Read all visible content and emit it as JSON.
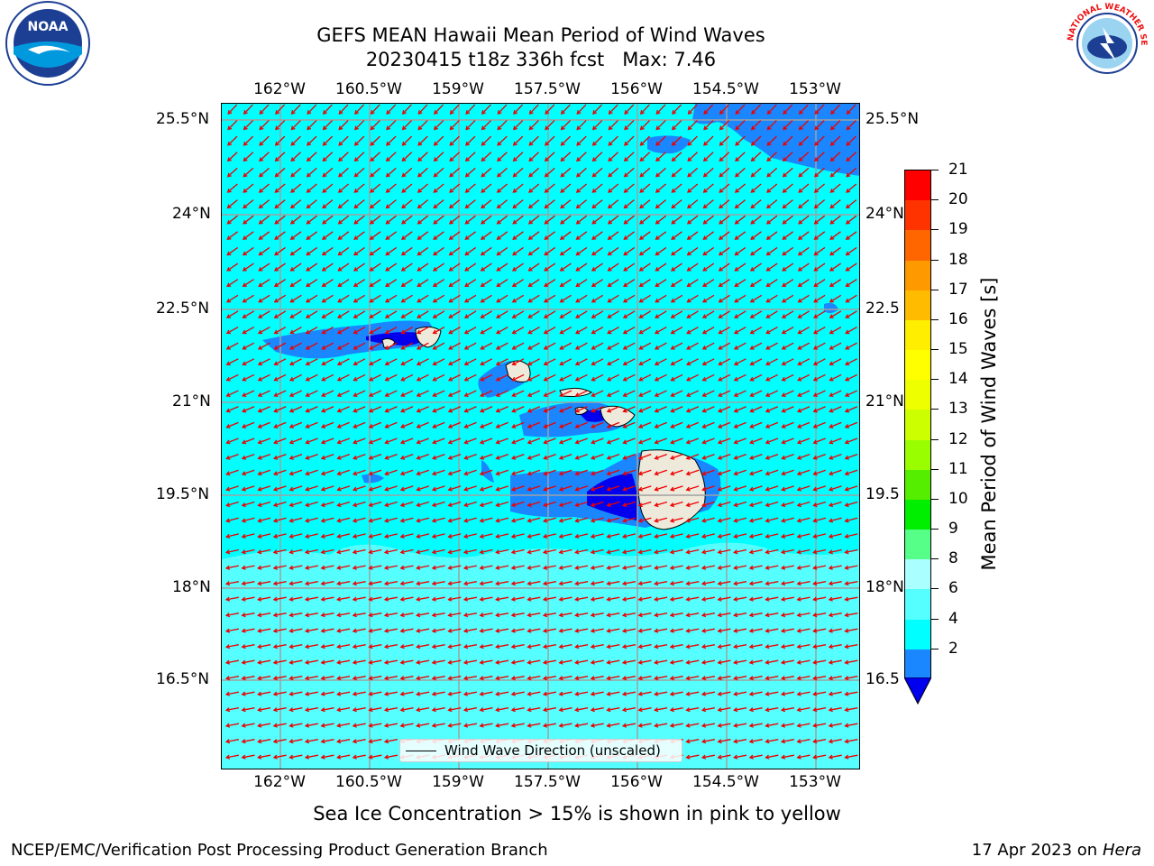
{
  "title": {
    "line1": "GEFS MEAN Hawaii Mean Period of Wind Waves",
    "line2": "20230415 t18z 336h fcst   Max: 7.46"
  },
  "map": {
    "lon_labels": [
      "162°W",
      "160.5°W",
      "159°W",
      "157.5°W",
      "156°W",
      "154.5°W",
      "153°W"
    ],
    "lat_labels_left": [
      "25.5°N",
      "24°N",
      "22.5°N",
      "21°N",
      "19.5°N",
      "18°N",
      "16.5°N"
    ],
    "lat_labels_right": [
      "25.5°N",
      "24°N",
      "22.5",
      "21°N",
      "19.5",
      "18°N",
      "16.5"
    ],
    "legend_label": "Wind Wave Direction (unscaled)",
    "colors": {
      "ocean_fill": "#00ffff",
      "low_period_fill": "#1a86ff",
      "lowest_period_fill": "#0000ee",
      "high_period_fill": "#55ffff",
      "land": "#eeeadb",
      "arrow": "#ee0000",
      "grid": "#a0a0a0"
    }
  },
  "colorbar": {
    "label": "Mean Period of Wind Waves [s]",
    "ticks": [
      "21",
      "20",
      "19",
      "18",
      "17",
      "16",
      "15",
      "14",
      "13",
      "12",
      "11",
      "10",
      "9",
      "8",
      "6",
      "4",
      "2"
    ],
    "colors": [
      "#ff0000",
      "#ff3300",
      "#ff6600",
      "#ff9900",
      "#ffbb00",
      "#ffee00",
      "#ffff00",
      "#eeff00",
      "#ccff00",
      "#99ff00",
      "#55ee00",
      "#00ee00",
      "#55ff88",
      "#aaffff",
      "#55ffff",
      "#00ffff",
      "#1a86ff"
    ],
    "extend_color": "#0000ee"
  },
  "sea_ice_note": "Sea Ice Concentration > 15% is shown in pink to yellow",
  "footer": {
    "left": "NCEP/EMC/Verification Post Processing Product Generation Branch",
    "date": "17 Apr 2023 on ",
    "machine": "Hera"
  },
  "logos": {
    "noaa_text": "NOAA",
    "nws_text": "NATIONAL WEATHER SERVICE"
  }
}
